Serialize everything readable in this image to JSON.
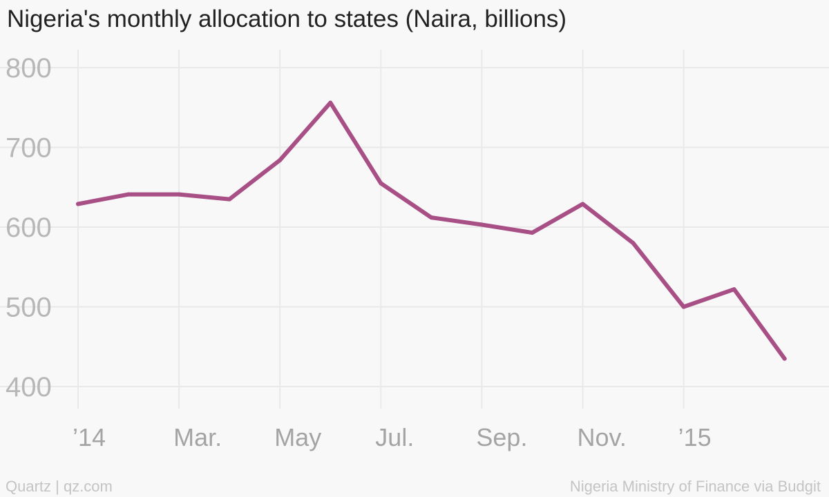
{
  "chart_data": {
    "type": "line",
    "title": "Nigeria's monthly allocation to states (Naira, billions)",
    "xlabel": "",
    "ylabel": "",
    "ylim": [
      400,
      800
    ],
    "yticks": [
      400,
      500,
      600,
      700,
      800
    ],
    "xtick_labels": [
      {
        "label": "’14",
        "month_index": 0
      },
      {
        "label": "Mar.",
        "month_index": 2
      },
      {
        "label": "May",
        "month_index": 4
      },
      {
        "label": "Jul.",
        "month_index": 6
      },
      {
        "label": "Sep.",
        "month_index": 8
      },
      {
        "label": "Nov.",
        "month_index": 10
      },
      {
        "label": "’15",
        "month_index": 12
      }
    ],
    "series": [
      {
        "name": "Monthly allocation",
        "color": "#a84f86",
        "x": [
          0,
          1,
          2,
          3,
          4,
          5,
          6,
          7,
          8,
          9,
          10,
          11,
          12,
          13,
          14
        ],
        "values": [
          629,
          641,
          641,
          635,
          684,
          756,
          655,
          612,
          603,
          593,
          629,
          580,
          500,
          522,
          435
        ]
      }
    ],
    "grid": true
  },
  "footer": {
    "credit": "Quartz | qz.com",
    "source": "Nigeria Ministry of Finance via Budgit"
  }
}
